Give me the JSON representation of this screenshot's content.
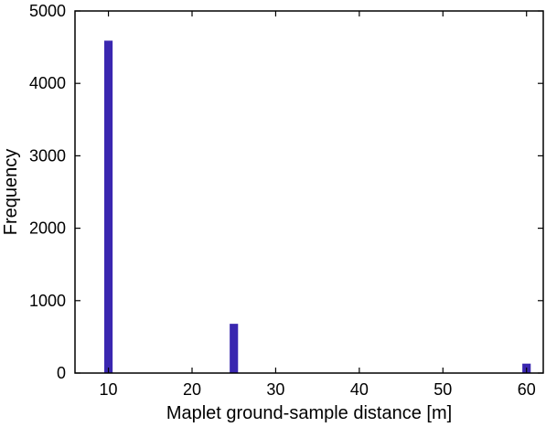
{
  "chart_data": {
    "type": "bar",
    "title": "",
    "xlabel": "Maplet ground-sample distance [m]",
    "ylabel": "Frequency",
    "x": [
      10,
      25,
      60
    ],
    "values": [
      4590,
      680,
      130
    ],
    "xlim": [
      6,
      62
    ],
    "ylim": [
      0,
      5000
    ],
    "xticks": [
      10,
      20,
      30,
      40,
      50,
      60
    ],
    "yticks": [
      0,
      1000,
      2000,
      3000,
      4000,
      5000
    ],
    "bar_width": 1,
    "bar_color": "#3a27b0",
    "grid": false,
    "legend": "none"
  }
}
